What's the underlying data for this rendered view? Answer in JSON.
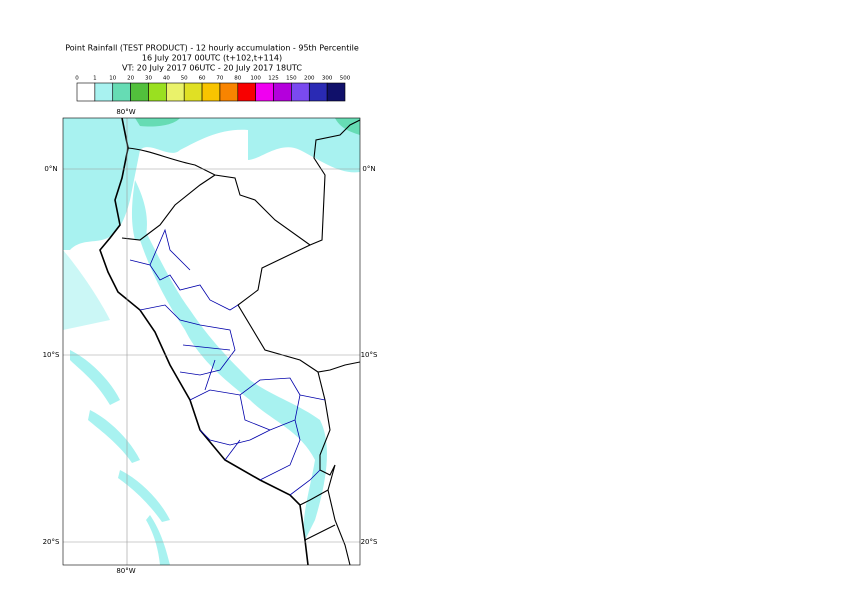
{
  "title": {
    "lines": [
      "Point Rainfall (TEST PRODUCT) - 12 hourly accumulation - 95th Percentile",
      "16 July 2017 00UTC (t+102,t+114)",
      "VT: 20 July 2017 06UTC - 20 July 2017 18UTC"
    ]
  },
  "legend": {
    "levels": [
      "0",
      "1",
      "10",
      "20",
      "30",
      "40",
      "50",
      "60",
      "70",
      "80",
      "100",
      "125",
      "150",
      "200",
      "300",
      "500"
    ],
    "colors": [
      "#ffffff",
      "#a8f2f0",
      "#66dcb4",
      "#52c03c",
      "#9ae020",
      "#eaf26a",
      "#e0e024",
      "#f8c400",
      "#f88400",
      "#f80000",
      "#f000f0",
      "#b400dc",
      "#7a4af0",
      "#2a2ab4",
      "#10106a"
    ]
  },
  "grid": {
    "lon": [
      "80°W"
    ],
    "lat": [
      "0°N",
      "10°S",
      "20°S"
    ]
  }
}
